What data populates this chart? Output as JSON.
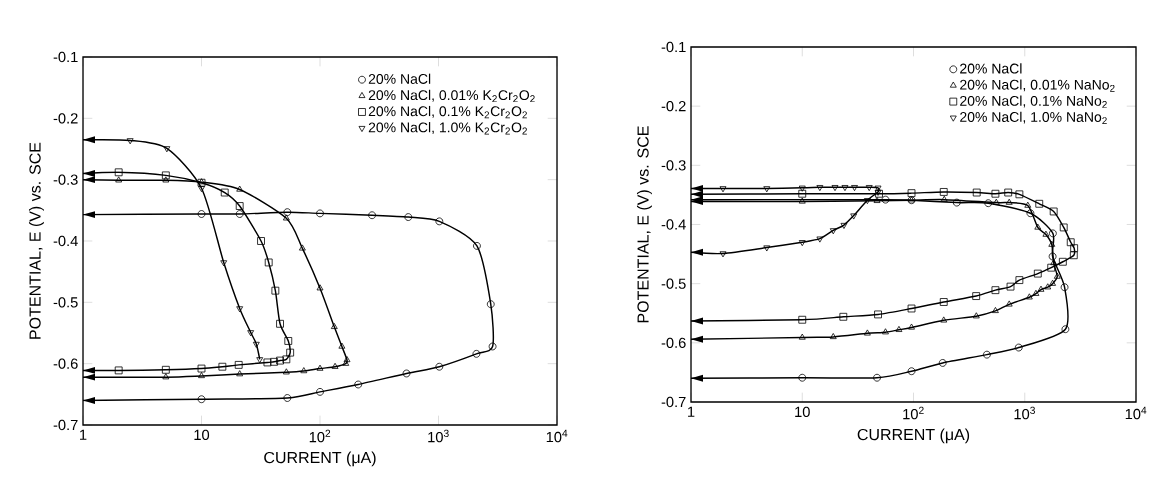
{
  "chart_data": [
    {
      "type": "line",
      "log": "x",
      "xlim": [
        1,
        10000
      ],
      "ylim": [
        -0.7,
        -0.1
      ],
      "xticks": [
        1,
        10,
        {
          "value": 100,
          "label": "10$^{2}$"
        },
        {
          "value": 1000,
          "label": "10$^{3}$"
        },
        {
          "value": 10000,
          "label": "10$^{4}$"
        }
      ],
      "yticks": [
        -0.7,
        -0.6,
        -0.5,
        -0.4,
        -0.3,
        -0.2,
        -0.1
      ],
      "xlabel": "CURRENT (μA)",
      "ylabel": "POTENTIAL, E (V) vs. SCE",
      "legend": "top right",
      "grid": false,
      "line_style": "solid",
      "series": [
        {
          "name": "20% NaCl",
          "color": "#000000",
          "marker": "circle",
          "x": [
            1,
            10,
            53,
            100,
            210,
            537,
            1016,
            2090,
            2860,
            2760,
            2110,
            1016,
            556,
            275,
            100,
            53,
            21,
            10,
            1
          ],
          "values": [
            -0.66,
            -0.658,
            -0.656,
            -0.646,
            -0.634,
            -0.616,
            -0.605,
            -0.584,
            -0.572,
            -0.503,
            -0.408,
            -0.368,
            -0.361,
            -0.358,
            -0.355,
            -0.353,
            -0.356,
            -0.356,
            -0.357
          ]
        },
        {
          "name": "20% NaCl, 0.01% K$_{2}$Cr$_{2}$O$_{2}$",
          "color": "#000000",
          "marker": "triangle",
          "x": [
            1,
            2,
            5,
            10,
            21,
            52,
            71,
            100,
            132,
            153,
            169,
            165,
            134,
            100,
            73,
            52,
            21,
            10,
            5,
            1
          ],
          "values": [
            -0.3,
            -0.301,
            -0.301,
            -0.304,
            -0.316,
            -0.363,
            -0.412,
            -0.477,
            -0.54,
            -0.572,
            -0.594,
            -0.6,
            -0.605,
            -0.608,
            -0.612,
            -0.614,
            -0.617,
            -0.62,
            -0.622,
            -0.622
          ]
        },
        {
          "name": "20% NaCl, 0.1% K$_{2}$Cr$_{2}$O$_{2}$",
          "color": "#000000",
          "marker": "square",
          "x": [
            1,
            2,
            5,
            10,
            15.7,
            21,
            31.8,
            36.9,
            42,
            46,
            54,
            56,
            52,
            46,
            41,
            36,
            20.6,
            15,
            10,
            5,
            2,
            1
          ],
          "values": [
            -0.29,
            -0.288,
            -0.293,
            -0.305,
            -0.321,
            -0.343,
            -0.4,
            -0.435,
            -0.481,
            -0.535,
            -0.563,
            -0.582,
            -0.593,
            -0.595,
            -0.597,
            -0.598,
            -0.602,
            -0.605,
            -0.608,
            -0.61,
            -0.611,
            -0.611
          ]
        },
        {
          "name": "20% NaCl, 1.0% K$_{2}$Cr$_{2}$O$_{2}$",
          "color": "#000000",
          "marker": "triangle down",
          "x": [
            1,
            2.5,
            5.1,
            10,
            15.4,
            21,
            26,
            29,
            31
          ],
          "values": [
            -0.235,
            -0.236,
            -0.249,
            -0.314,
            -0.435,
            -0.51,
            -0.549,
            -0.568,
            -0.593
          ]
        }
      ]
    },
    {
      "type": "line",
      "log": "x",
      "xlim": [
        1,
        10000
      ],
      "ylim": [
        -0.7,
        -0.1
      ],
      "xticks": [
        1,
        10,
        {
          "value": 100,
          "label": "10$^{2}$"
        },
        {
          "value": 1000,
          "label": "10$^{3}$"
        },
        {
          "value": 10000,
          "label": "10$^{4}$"
        }
      ],
      "yticks": [
        -0.7,
        -0.6,
        -0.5,
        -0.4,
        -0.3,
        -0.2,
        -0.1
      ],
      "xlabel": "CURRENT (μA)",
      "ylabel": "POTENTIAL, E (V) vs. SCE",
      "legend": "top right",
      "grid": false,
      "line_style": "solid",
      "series": [
        {
          "name": "20% NaCl",
          "color": "#000000",
          "marker": "circle",
          "x": [
            1,
            10,
            47,
            96,
            183,
            457,
            883,
            2320,
            2280,
            1780,
            1790,
            1125,
            470,
            245,
            96,
            56,
            1
          ],
          "values": [
            -0.66,
            -0.659,
            -0.659,
            -0.648,
            -0.634,
            -0.62,
            -0.608,
            -0.577,
            -0.506,
            -0.454,
            -0.415,
            -0.381,
            -0.364,
            -0.363,
            -0.359,
            -0.358,
            -0.358
          ]
        },
        {
          "name": "20% NaCl, 0.01% NaNo$_{2}$",
          "color": "#000000",
          "marker": "triangle",
          "x": [
            1,
            10,
            19,
            38.5,
            56,
            74,
            96,
            187,
            367,
            545,
            725,
            1100,
            1260,
            1400,
            1610,
            1780,
            1960,
            1820,
            1750,
            1550,
            1310,
            1065,
            725,
            555,
            189,
            96,
            47,
            10,
            1
          ],
          "values": [
            -0.594,
            -0.591,
            -0.59,
            -0.584,
            -0.582,
            -0.578,
            -0.574,
            -0.562,
            -0.555,
            -0.546,
            -0.535,
            -0.523,
            -0.517,
            -0.51,
            -0.506,
            -0.5,
            -0.488,
            -0.465,
            -0.434,
            -0.417,
            -0.405,
            -0.368,
            -0.363,
            -0.363,
            -0.358,
            -0.359,
            -0.36,
            -0.361,
            -0.361
          ]
        },
        {
          "name": "20% NaCl, 0.1% NaNo$_{2}$",
          "color": "#000000",
          "marker": "square",
          "x": [
            1,
            10,
            23.4,
            48,
            96,
            187,
            366,
            545,
            745,
            895,
            1310,
            1730,
            2200,
            2760,
            2780,
            2590,
            2240,
            1820,
            1350,
            895,
            710,
            545,
            370,
            187,
            96,
            49,
            10,
            1
          ],
          "values": [
            -0.563,
            -0.561,
            -0.556,
            -0.552,
            -0.542,
            -0.531,
            -0.521,
            -0.511,
            -0.505,
            -0.494,
            -0.483,
            -0.473,
            -0.463,
            -0.452,
            -0.44,
            -0.43,
            -0.405,
            -0.378,
            -0.365,
            -0.349,
            -0.346,
            -0.348,
            -0.346,
            -0.345,
            -0.347,
            -0.348,
            -0.348,
            -0.349
          ]
        },
        {
          "name": "20% NaCl, 1.0% NaNo$_{2}$",
          "color": "#000000",
          "marker": "triangle down",
          "x": [
            1,
            1.94,
            4.8,
            10,
            14.4,
            19,
            23.7,
            29,
            38.5,
            48,
            48,
            40,
            29.5,
            24.2,
            19.7,
            14.4,
            10,
            4.8,
            1.94,
            1
          ],
          "values": [
            -0.447,
            -0.449,
            -0.439,
            -0.43,
            -0.424,
            -0.41,
            -0.401,
            -0.385,
            -0.359,
            -0.345,
            -0.338,
            -0.337,
            -0.337,
            -0.337,
            -0.337,
            -0.337,
            -0.338,
            -0.339,
            -0.339,
            -0.339
          ]
        }
      ]
    }
  ]
}
